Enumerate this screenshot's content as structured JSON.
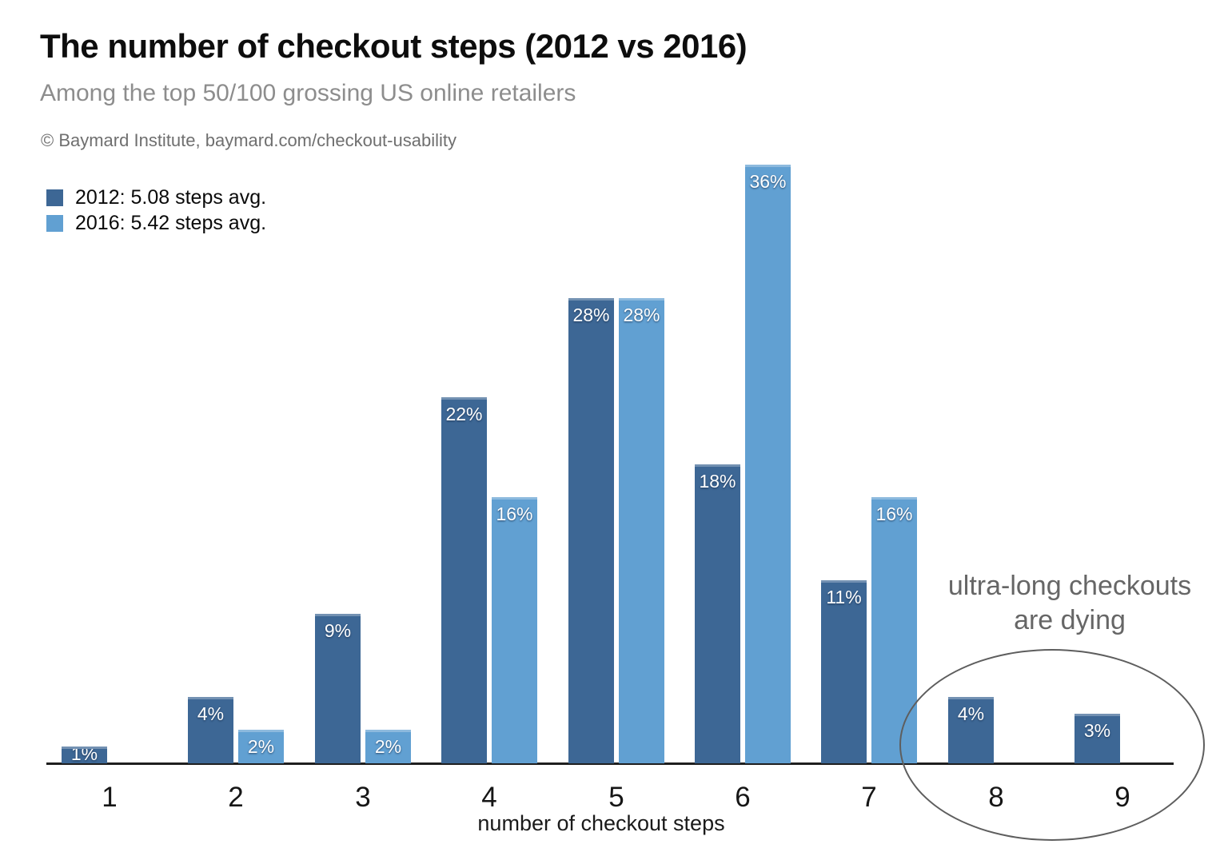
{
  "chart_data": {
    "type": "bar",
    "title": "The number of checkout steps (2012 vs 2016)",
    "subtitle": "Among the top 50/100 grossing US online retailers",
    "attribution": "© Baymard Institute, baymard.com/checkout-usability",
    "xlabel": "number of checkout steps",
    "ylabel": "",
    "value_suffix": "%",
    "categories": [
      "1",
      "2",
      "3",
      "4",
      "5",
      "6",
      "7",
      "8",
      "9"
    ],
    "series": [
      {
        "name": "2012",
        "legend": "2012: 5.08 steps avg.",
        "color": "#3d6795",
        "values": [
          1,
          4,
          9,
          22,
          28,
          18,
          11,
          4,
          3
        ]
      },
      {
        "name": "2016",
        "legend": "2016: 5.42 steps avg.",
        "color": "#61a0d2",
        "values": [
          null,
          2,
          2,
          16,
          28,
          36,
          16,
          null,
          null
        ]
      }
    ],
    "ylim": [
      0,
      37
    ],
    "y_axis_visible": false,
    "grid": false,
    "legend_position": "top-left",
    "annotation_line1": "ultra-long checkouts",
    "annotation_line2": "are dying",
    "annotation_circled_categories": [
      "8",
      "9"
    ]
  }
}
